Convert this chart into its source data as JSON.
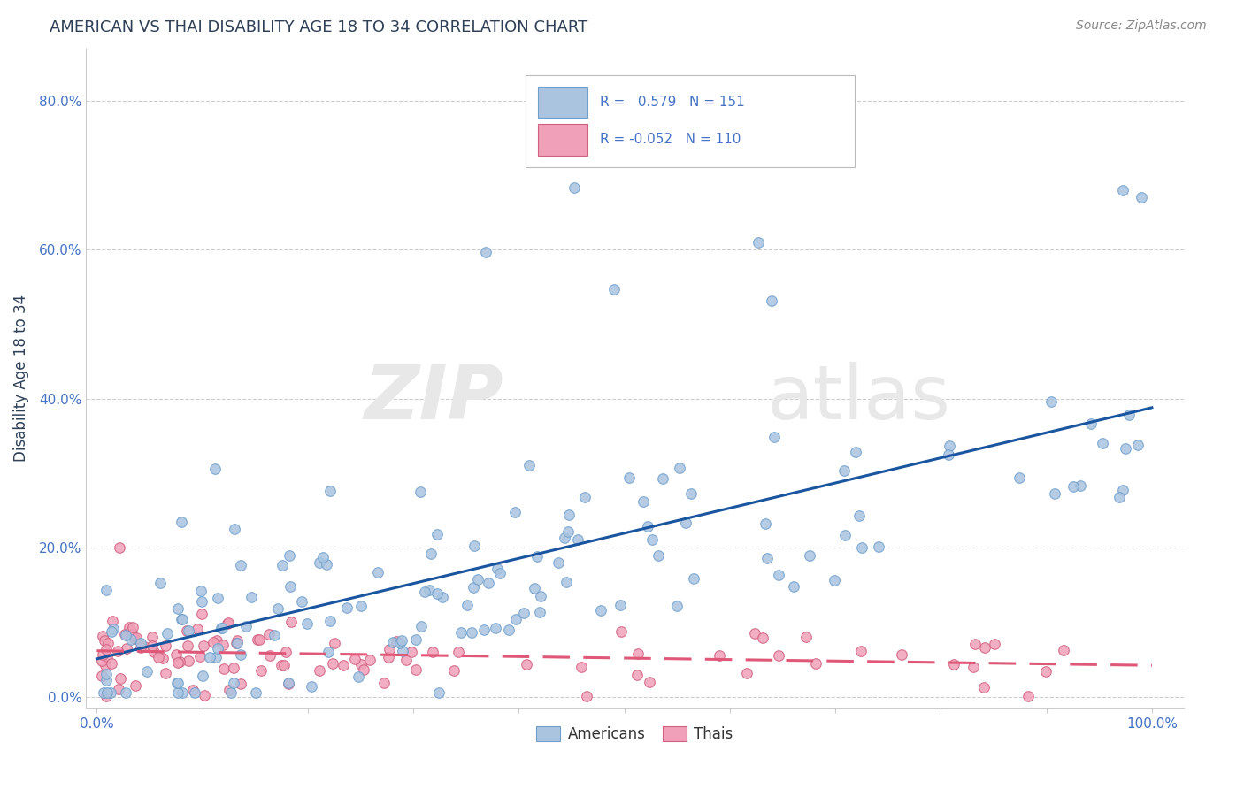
{
  "title": "AMERICAN VS THAI DISABILITY AGE 18 TO 34 CORRELATION CHART",
  "source_text": "Source: ZipAtlas.com",
  "ylabel": "Disability Age 18 to 34",
  "title_color": "#2d4057",
  "source_color": "#888888",
  "ylabel_color": "#2d4057",
  "ytick_color": "#4472c4",
  "xtick_color": "#4472c4",
  "grid_color": "#cccccc",
  "american_face_color": "#aac4e0",
  "american_edge_color": "#6fa0cc",
  "american_line_color": "#1a55a0",
  "thai_face_color": "#f0a0b8",
  "thai_edge_color": "#d06080",
  "thai_line_color": "#e05878",
  "R_american": 0.579,
  "N_american": 151,
  "R_thai": -0.052,
  "N_thai": 110,
  "legend_R_color": "#4472c4",
  "legend_N_color": "#4472c4"
}
